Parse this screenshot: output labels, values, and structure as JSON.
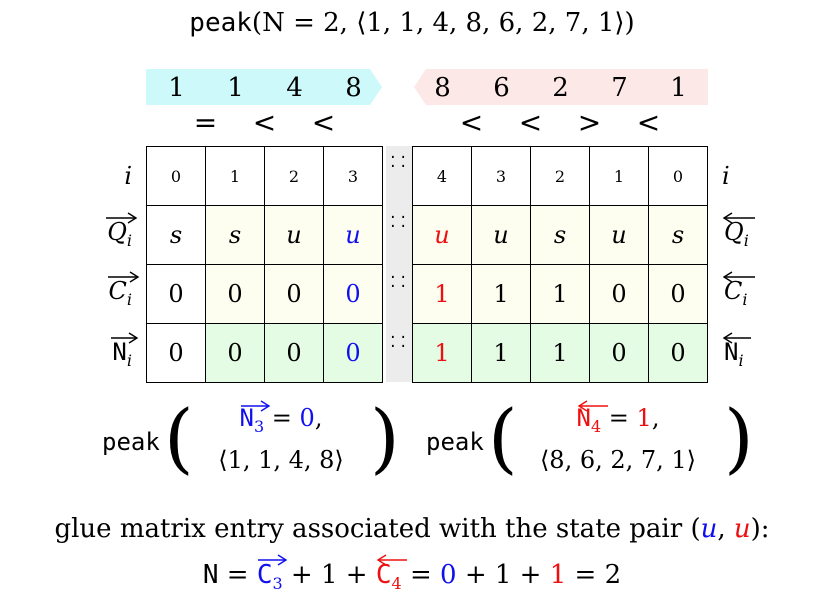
{
  "title": {
    "func": "peak",
    "args": "(N = 2, ⟨1, 1, 4, 8, 6, 2, 7, 1⟩)"
  },
  "left_arrow": {
    "values": [
      "1",
      "1",
      "4",
      "8"
    ],
    "color": "#cdf9fb",
    "comparisons": [
      "=",
      "<",
      "<"
    ]
  },
  "right_arrow": {
    "values": [
      "8",
      "6",
      "2",
      "7",
      "1"
    ],
    "color": "#fde8e8",
    "comparisons": [
      "<",
      "<",
      ">",
      "<"
    ]
  },
  "row_labels": {
    "i": "i",
    "Q": "Q",
    "C": "C",
    "N": "N",
    "sub": "i"
  },
  "left_table": {
    "i": [
      "0",
      "1",
      "2",
      "3"
    ],
    "Q": [
      "s",
      "s",
      "u",
      "u"
    ],
    "C": [
      "0",
      "0",
      "0",
      "0"
    ],
    "N": [
      "0",
      "0",
      "0",
      "0"
    ]
  },
  "right_table": {
    "i": [
      "4",
      "3",
      "2",
      "1",
      "0"
    ],
    "Q": [
      "u",
      "u",
      "s",
      "u",
      "s"
    ],
    "C": [
      "1",
      "1",
      "1",
      "0",
      "0"
    ],
    "N": [
      "1",
      "1",
      "1",
      "0",
      "0"
    ]
  },
  "left_peak": {
    "func": "peak",
    "var": "N",
    "sub": "3",
    "eq": " = ",
    "val": "0",
    "comma": ",",
    "seq": "⟨1, 1, 4, 8⟩"
  },
  "right_peak": {
    "func": "peak",
    "var": "N",
    "sub": "4",
    "eq": " = ",
    "val": "1",
    "comma": ",",
    "seq": "⟨8, 6, 2, 7, 1⟩"
  },
  "glue": {
    "line1_pre": "glue matrix entry associated with the state pair (",
    "u1": "u",
    "comma": ", ",
    "u2": "u",
    "line1_post": "):",
    "n": "N",
    "eq1": " = ",
    "c_left": "C",
    "c_left_sub": "3",
    "plus1": " + 1 + ",
    "c_right": "C",
    "c_right_sub": "4",
    "eq2": " = ",
    "v_left": "0",
    "plus2": " + 1 + ",
    "v_right": "1",
    "eq3": " = 2"
  },
  "colors": {
    "blue": "#1010ee",
    "red": "#ee1010",
    "yellow_cell": "#fdfdf0",
    "green_cell": "#e4fbe4",
    "separator": "#ececec"
  }
}
